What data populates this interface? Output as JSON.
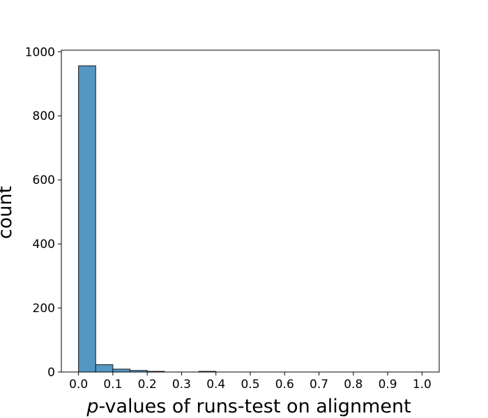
{
  "chart_data": {
    "type": "bar",
    "title": "",
    "xlabel_italic": "p",
    "xlabel_rest": "-values of runs-test on alignment",
    "ylabel": "count",
    "xlim": [
      -0.05,
      1.05
    ],
    "ylim": [
      0,
      1005
    ],
    "xticks": [
      "0.0",
      "0.1",
      "0.2",
      "0.3",
      "0.4",
      "0.5",
      "0.6",
      "0.7",
      "0.8",
      "0.9",
      "1.0"
    ],
    "yticks": [
      "0",
      "200",
      "400",
      "600",
      "800",
      "1000"
    ],
    "bin_width": 0.05,
    "bins": [
      {
        "start": 0.0,
        "count": 956
      },
      {
        "start": 0.05,
        "count": 23
      },
      {
        "start": 0.1,
        "count": 9
      },
      {
        "start": 0.15,
        "count": 5
      },
      {
        "start": 0.2,
        "count": 2
      },
      {
        "start": 0.25,
        "count": 0
      },
      {
        "start": 0.3,
        "count": 0
      },
      {
        "start": 0.35,
        "count": 2
      },
      {
        "start": 0.4,
        "count": 0
      },
      {
        "start": 0.45,
        "count": 0
      },
      {
        "start": 0.5,
        "count": 0
      },
      {
        "start": 0.55,
        "count": 0
      },
      {
        "start": 0.6,
        "count": 0
      },
      {
        "start": 0.65,
        "count": 0
      },
      {
        "start": 0.7,
        "count": 0
      },
      {
        "start": 0.75,
        "count": 0
      },
      {
        "start": 0.8,
        "count": 0
      },
      {
        "start": 0.85,
        "count": 0
      },
      {
        "start": 0.9,
        "count": 0
      },
      {
        "start": 0.95,
        "count": 0
      }
    ],
    "bar_color": "#5497c5",
    "edge_color": "#1a1a1a",
    "grid": false,
    "legend": "none"
  }
}
